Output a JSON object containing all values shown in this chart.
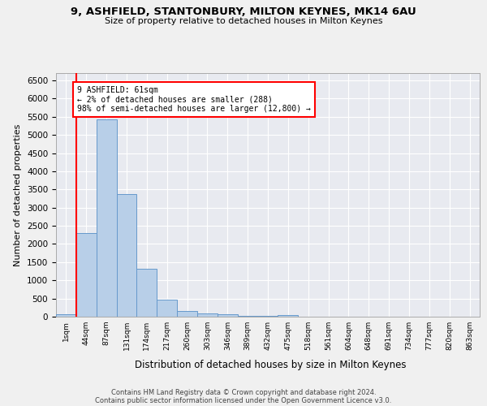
{
  "title1": "9, ASHFIELD, STANTONBURY, MILTON KEYNES, MK14 6AU",
  "title2": "Size of property relative to detached houses in Milton Keynes",
  "xlabel": "Distribution of detached houses by size in Milton Keynes",
  "ylabel": "Number of detached properties",
  "footer1": "Contains HM Land Registry data © Crown copyright and database right 2024.",
  "footer2": "Contains public sector information licensed under the Open Government Licence v3.0.",
  "bin_labels": [
    "1sqm",
    "44sqm",
    "87sqm",
    "131sqm",
    "174sqm",
    "217sqm",
    "260sqm",
    "303sqm",
    "346sqm",
    "389sqm",
    "432sqm",
    "475sqm",
    "518sqm",
    "561sqm",
    "604sqm",
    "648sqm",
    "691sqm",
    "734sqm",
    "777sqm",
    "820sqm",
    "863sqm"
  ],
  "bar_values": [
    70,
    2300,
    5430,
    3380,
    1310,
    480,
    165,
    95,
    60,
    30,
    15,
    55,
    0,
    0,
    0,
    0,
    0,
    0,
    0,
    0,
    0
  ],
  "bar_color": "#b8cfe8",
  "bar_edge_color": "#6699cc",
  "vline_color": "red",
  "annotation_text": "9 ASHFIELD: 61sqm\n← 2% of detached houses are smaller (288)\n98% of semi-detached houses are larger (12,800) →",
  "annotation_box_color": "white",
  "annotation_box_edge": "red",
  "ylim": [
    0,
    6700
  ],
  "yticks": [
    0,
    500,
    1000,
    1500,
    2000,
    2500,
    3000,
    3500,
    4000,
    4500,
    5000,
    5500,
    6000,
    6500
  ],
  "background_color": "#e8eaf0",
  "fig_background": "#f0f0f0"
}
